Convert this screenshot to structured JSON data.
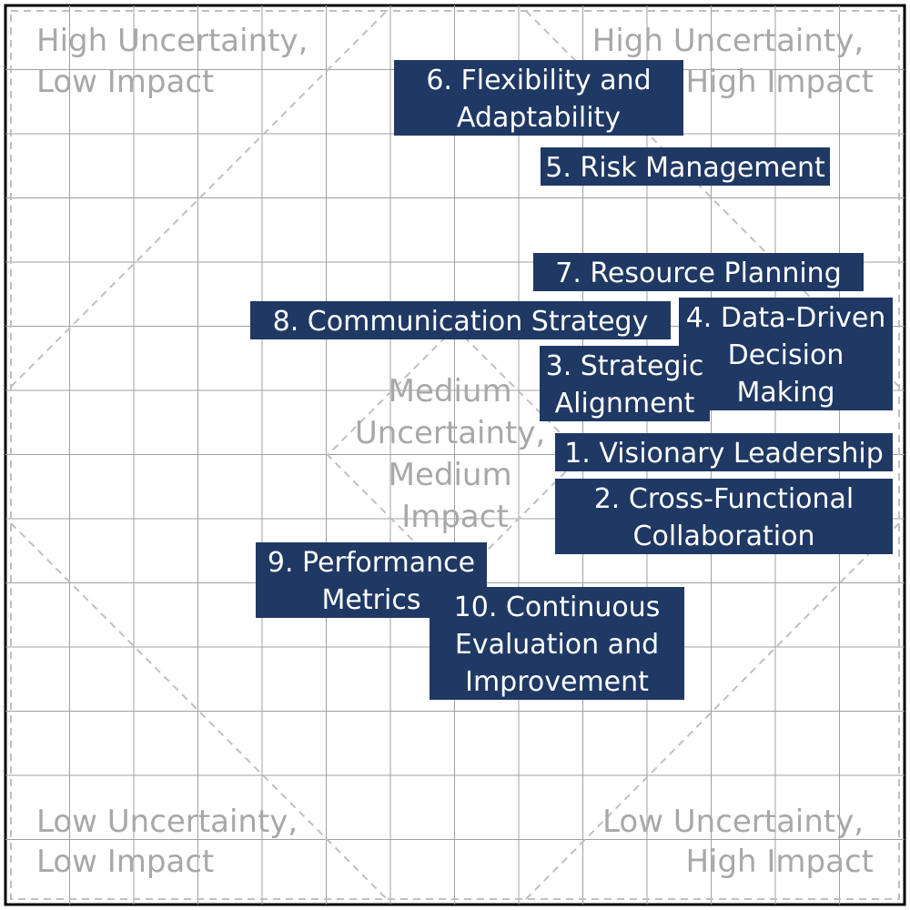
{
  "zones": {
    "top_left": [
      "High Uncertainty,",
      "Low Impact"
    ],
    "top_right": [
      "High Uncertainty,",
      "High Impact"
    ],
    "center": [
      "Medium",
      "Uncertainty,",
      "Medium",
      "Impact"
    ],
    "bottom_left": [
      "Low Uncertainty,",
      "Low Impact"
    ],
    "bottom_right": [
      "Low Uncertainty,",
      "High Impact"
    ]
  },
  "items": [
    {
      "id": 6,
      "lines": [
        "6. Flexibility and",
        "Adaptability"
      ]
    },
    {
      "id": 5,
      "lines": [
        "5. Risk Management"
      ]
    },
    {
      "id": 7,
      "lines": [
        "7. Resource Planning"
      ]
    },
    {
      "id": 8,
      "lines": [
        "8. Communication Strategy"
      ]
    },
    {
      "id": 4,
      "lines": [
        "4. Data-Driven",
        "Decision",
        "Making"
      ]
    },
    {
      "id": 3,
      "lines": [
        "3. Strategic",
        "Alignment"
      ]
    },
    {
      "id": 1,
      "lines": [
        "1. Visionary Leadership"
      ]
    },
    {
      "id": 2,
      "lines": [
        "2. Cross-Functional",
        "Collaboration"
      ]
    },
    {
      "id": 9,
      "lines": [
        "9. Performance",
        "Metrics"
      ]
    },
    {
      "id": 10,
      "lines": [
        "10. Continuous",
        "Evaluation and",
        "Improvement"
      ]
    }
  ],
  "colors": {
    "box_fill": "#1f3864",
    "box_text": "#ffffff",
    "zone_text": "#a8a8a8",
    "grid": "#a0a0a0",
    "dash": "#c0c0c0"
  }
}
